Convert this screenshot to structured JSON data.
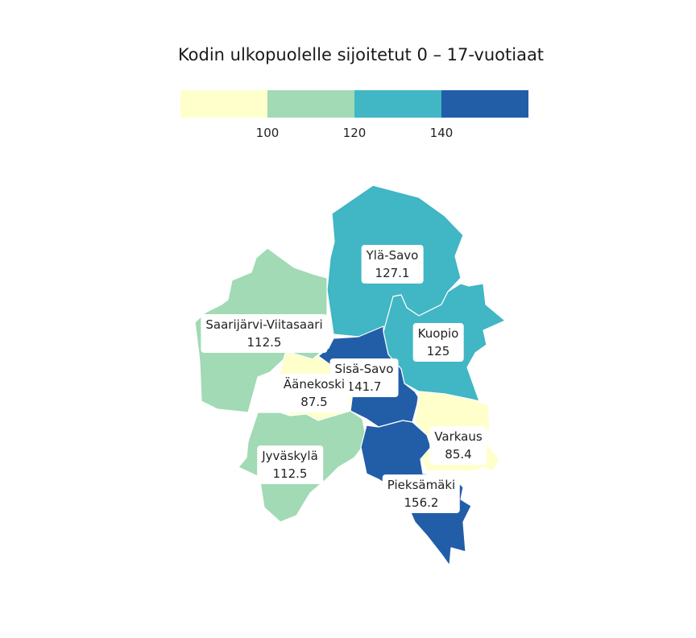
{
  "title": "Kodin ulkopuolelle sijoitetut 0 – 17-vuotiaat",
  "legend": {
    "bins": [
      {
        "color": "#ffffcc"
      },
      {
        "color": "#a1dab4"
      },
      {
        "color": "#41b6c4"
      },
      {
        "color": "#225ea8"
      }
    ],
    "thresholds": [
      "100",
      "120",
      "140"
    ]
  },
  "regions": [
    {
      "name": "Ylä-Savo",
      "value": "127.1",
      "color": "#41b6c4"
    },
    {
      "name": "Kuopio",
      "value": "125",
      "color": "#41b6c4"
    },
    {
      "name": "Saarijärvi-Viitasaari",
      "value": "112.5",
      "color": "#a1dab4"
    },
    {
      "name": "Sisä-Savo",
      "value": "141.7",
      "color": "#225ea8"
    },
    {
      "name": "Äänekoski",
      "value": "87.5",
      "color": "#ffffcc"
    },
    {
      "name": "Varkaus",
      "value": "85.4",
      "color": "#ffffcc"
    },
    {
      "name": "Jyväskylä",
      "value": "112.5",
      "color": "#a1dab4"
    },
    {
      "name": "Pieksämäki",
      "value": "156.2",
      "color": "#225ea8"
    }
  ]
}
